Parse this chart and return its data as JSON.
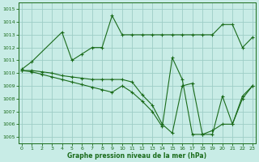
{
  "title": "Graphe pression niveau de la mer (hPa)",
  "bg_color": "#c8ece6",
  "line_color": "#1a6b1a",
  "grid_color": "#9ecec6",
  "ylim": [
    1004.5,
    1015.5
  ],
  "xlim": [
    -0.3,
    23.3
  ],
  "yticks": [
    1005,
    1006,
    1007,
    1008,
    1009,
    1010,
    1011,
    1012,
    1013,
    1014,
    1015
  ],
  "xticks": [
    0,
    1,
    2,
    3,
    4,
    5,
    6,
    7,
    8,
    9,
    10,
    11,
    12,
    13,
    14,
    15,
    16,
    17,
    18,
    19,
    20,
    21,
    22,
    23
  ],
  "curve1_x": [
    0,
    1,
    4,
    5,
    6,
    7,
    8,
    9,
    10,
    11,
    12,
    13,
    14,
    15,
    16,
    17,
    18,
    19,
    20,
    21,
    22,
    23
  ],
  "curve1_y": [
    1010.3,
    1010.9,
    1013.2,
    1011.0,
    1011.5,
    1012.0,
    1012.0,
    1014.5,
    1013.0,
    1013.0,
    1013.0,
    1013.0,
    1013.0,
    1013.0,
    1013.0,
    1013.0,
    1013.0,
    1013.0,
    1013.8,
    1013.8,
    1012.0,
    1012.8
  ],
  "curve2_x": [
    0,
    1,
    2,
    3,
    4,
    5,
    6,
    7,
    8,
    9,
    10,
    11,
    12,
    13,
    14,
    15,
    16,
    17,
    18,
    19,
    20,
    21,
    22,
    23
  ],
  "curve2_y": [
    1010.2,
    1010.2,
    1010.1,
    1010.0,
    1009.8,
    1009.7,
    1009.6,
    1009.5,
    1009.5,
    1009.5,
    1009.5,
    1009.3,
    1008.3,
    1007.5,
    1006.0,
    1005.3,
    1009.0,
    1009.2,
    1005.2,
    1005.2,
    1008.2,
    1006.0,
    1008.2,
    1009.0
  ],
  "curve3_x": [
    0,
    1,
    2,
    3,
    4,
    5,
    6,
    7,
    8,
    9,
    10,
    11,
    12,
    13,
    14,
    15,
    16,
    17,
    18,
    19,
    20,
    21,
    22,
    23
  ],
  "curve3_y": [
    1010.2,
    1010.1,
    1009.9,
    1009.7,
    1009.5,
    1009.3,
    1009.1,
    1008.9,
    1008.7,
    1008.5,
    1009.0,
    1008.5,
    1007.8,
    1007.0,
    1005.8,
    1011.2,
    1009.5,
    1005.2,
    1005.2,
    1005.5,
    1006.0,
    1006.0,
    1008.0,
    1009.0
  ]
}
